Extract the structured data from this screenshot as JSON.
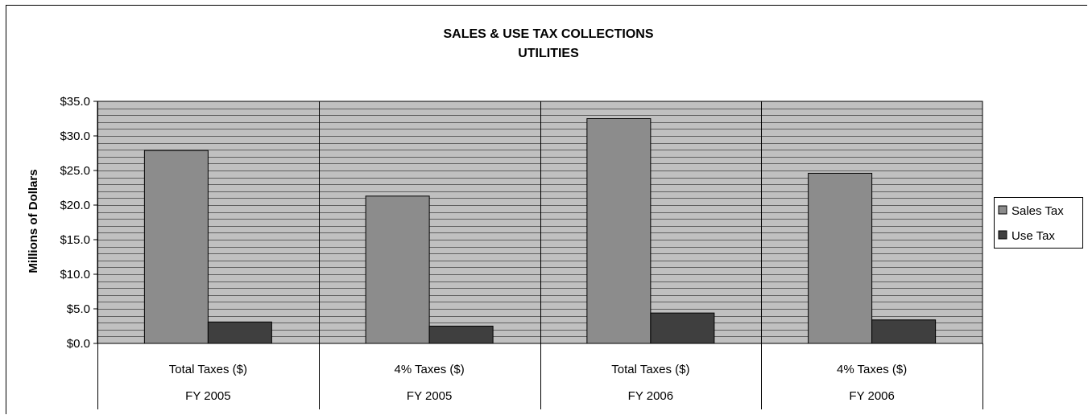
{
  "chart_data": {
    "type": "bar",
    "title": "SALES & USE TAX COLLECTIONS",
    "subtitle": "UTILITIES",
    "ylabel": "Millions of Dollars",
    "xlabel": "",
    "ylim": [
      0,
      35
    ],
    "yticks": [
      0,
      5,
      10,
      15,
      20,
      25,
      30,
      35
    ],
    "ytick_labels": [
      "$0.0",
      "$5.0",
      "$10.0",
      "$15.0",
      "$20.0",
      "$25.0",
      "$30.0",
      "$35.0"
    ],
    "categories": [
      "Total Taxes ($)",
      "4% Taxes ($)",
      "Total Taxes ($)",
      "4% Taxes ($)"
    ],
    "category_groups": [
      "FY 2005",
      "FY 2005",
      "FY 2006",
      "FY 2006"
    ],
    "series": [
      {
        "name": "Sales Tax",
        "values": [
          27.9,
          21.3,
          32.5,
          24.6
        ],
        "color": "#8c8c8c"
      },
      {
        "name": "Use Tax",
        "values": [
          3.1,
          2.5,
          4.4,
          3.4
        ],
        "color": "#3f3f3f"
      }
    ],
    "grid": true,
    "plot_background": "#c0c0c0",
    "legend_position": "right"
  }
}
